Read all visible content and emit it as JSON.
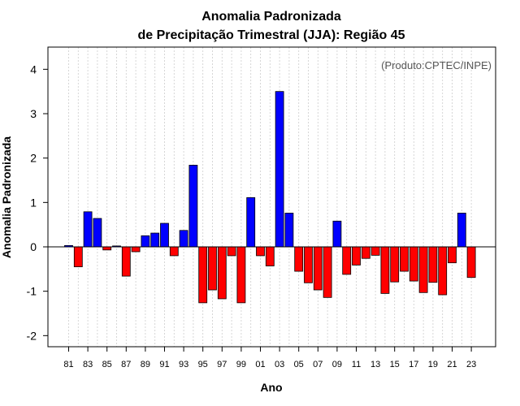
{
  "chart_data": {
    "type": "bar",
    "title_line1": "Anomalia Padronizada",
    "title_line2": "de Precipitação Trimestral (JJA): Região 45",
    "xlabel": "Ano",
    "ylabel": "Anomalia Padronizada",
    "annotation": "(Produto:CPTEC/INPE)",
    "ylim": [
      -2.25,
      4.5
    ],
    "yticks": [
      -2,
      -1,
      0,
      1,
      2,
      3,
      4
    ],
    "ytick_labels": [
      "-2",
      "-1",
      "0",
      "1",
      "2",
      "3",
      "4"
    ],
    "years": [
      1981,
      1982,
      1983,
      1984,
      1985,
      1986,
      1987,
      1988,
      1989,
      1990,
      1991,
      1992,
      1993,
      1994,
      1995,
      1996,
      1997,
      1998,
      1999,
      2000,
      2001,
      2002,
      2003,
      2004,
      2005,
      2006,
      2007,
      2008,
      2009,
      2010,
      2011,
      2012,
      2013,
      2014,
      2015,
      2016,
      2017,
      2018,
      2019,
      2020,
      2021,
      2022,
      2023
    ],
    "xtick_labels": [
      "81",
      "83",
      "85",
      "87",
      "89",
      "91",
      "93",
      "95",
      "97",
      "99",
      "01",
      "03",
      "05",
      "07",
      "09",
      "11",
      "13",
      "15",
      "17",
      "19",
      "21",
      "23"
    ],
    "values": [
      0.03,
      -0.45,
      0.79,
      0.64,
      -0.07,
      0.02,
      -0.66,
      -0.11,
      0.25,
      0.31,
      0.53,
      -0.2,
      0.37,
      1.84,
      -1.26,
      -0.97,
      -1.17,
      -0.2,
      -1.26,
      1.11,
      -0.2,
      -0.43,
      3.5,
      0.76,
      -0.55,
      -0.81,
      -0.97,
      -1.14,
      0.58,
      -0.62,
      -0.41,
      -0.26,
      -0.19,
      -1.05,
      -0.79,
      -0.55,
      -0.77,
      -1.03,
      -0.8,
      -1.08,
      -0.36,
      0.76,
      -0.69
    ],
    "grid": true,
    "colors": {
      "positive": "#0000ff",
      "negative": "#ff0000",
      "zero_line": "#000000",
      "grid": "#cccccc"
    }
  }
}
